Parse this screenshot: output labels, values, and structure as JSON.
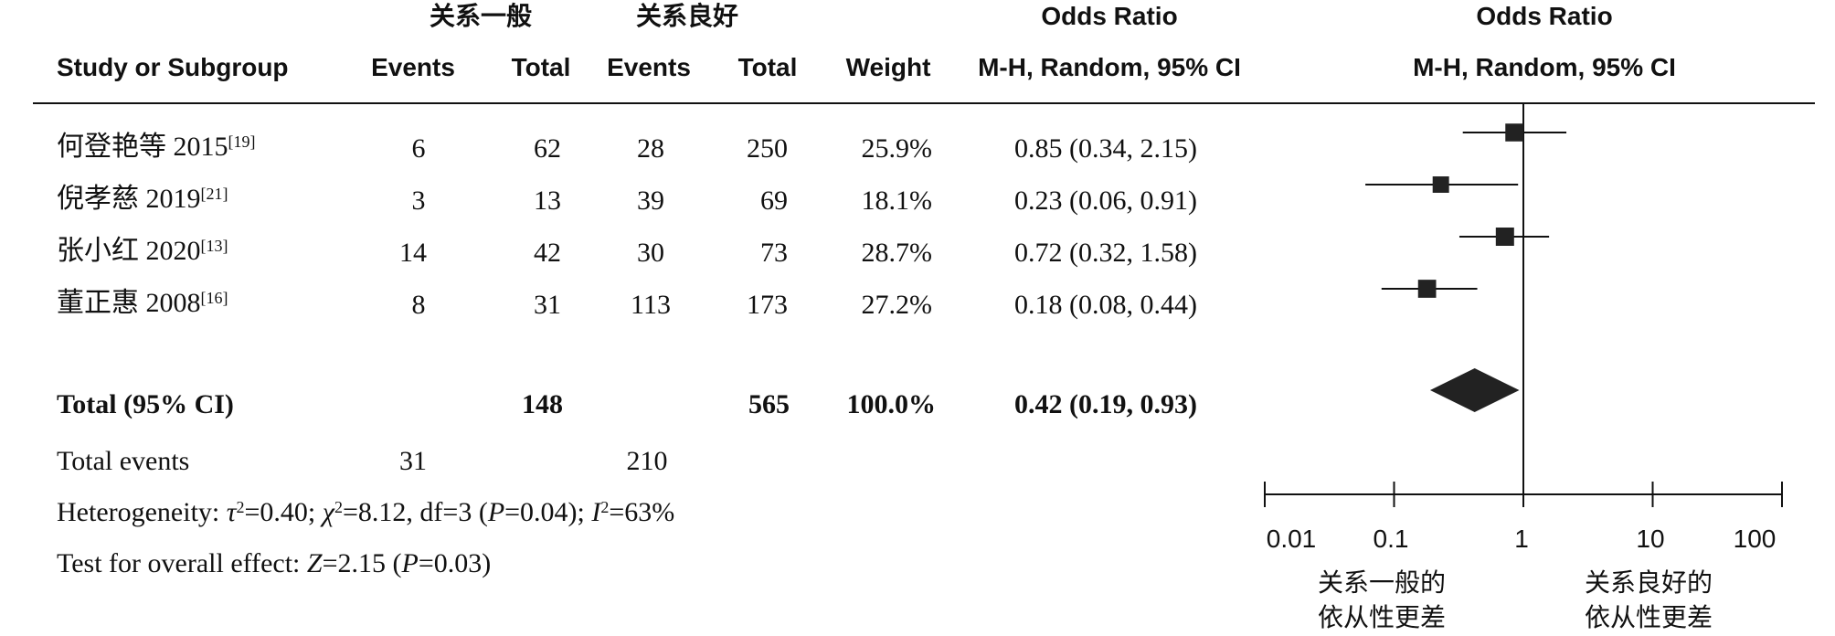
{
  "header": {
    "group1": "关系一般",
    "group2": "关系良好",
    "or_title": "Odds Ratio",
    "col_study": "Study or Subgroup",
    "col_events": "Events",
    "col_total": "Total",
    "col_weight": "Weight",
    "col_ci": "M-H, Random, 95% CI",
    "col_or_ci": "M-H, Random, 95% CI"
  },
  "studies": [
    {
      "name": "何登艳等 2015",
      "ref": "[19]",
      "e1": "6",
      "t1": "62",
      "e2": "28",
      "t2": "250",
      "weight": "25.9%",
      "ci": "0.85 (0.34, 2.15)"
    },
    {
      "name": "倪孝慈 2019",
      "ref": "[21]",
      "e1": "3",
      "t1": "13",
      "e2": "39",
      "t2": "69",
      "weight": "18.1%",
      "ci": "0.23 (0.06, 0.91)"
    },
    {
      "name": "张小红 2020",
      "ref": "[13]",
      "e1": "14",
      "t1": "42",
      "e2": "30",
      "t2": "73",
      "weight": "28.7%",
      "ci": "0.72 (0.32, 1.58)"
    },
    {
      "name": "董正惠 2008",
      "ref": "[16]",
      "e1": "8",
      "t1": "31",
      "e2": "113",
      "t2": "173",
      "weight": "27.2%",
      "ci": "0.18 (0.08, 0.44)"
    }
  ],
  "total": {
    "label": "Total (95% CI)",
    "t1": "148",
    "t2": "565",
    "weight": "100.0%",
    "ci": "0.42 (0.19, 0.93)"
  },
  "total_events": {
    "label": "Total events",
    "e1": "31",
    "e2": "210"
  },
  "heterogeneity": {
    "prefix": "Heterogeneity: ",
    "tau": "τ",
    "tau_val": "=0.40; ",
    "chi": "χ",
    "chi_val": "=8.12, df=3 (",
    "p": "P",
    "p_val": "=0.04); ",
    "i": "I",
    "i_val": "=63%"
  },
  "overall_effect": {
    "prefix": "Test for overall effect: ",
    "z": "Z",
    "z_val": "=2.15 (",
    "p": "P",
    "p_val": "=0.03)"
  },
  "axis": {
    "tick_labels": [
      "0.01",
      "0.1",
      "1",
      "10",
      "100"
    ],
    "favours_left_line1": "关系一般的",
    "favours_left_line2": "依从性更差",
    "favours_right_line1": "关系良好的",
    "favours_right_line2": "依从性更差"
  },
  "chart_data": {
    "type": "scatter",
    "x_scale": "log",
    "xlim": [
      0.01,
      100
    ],
    "ticks": [
      0.01,
      0.1,
      1,
      10,
      100
    ],
    "reference_line": 1,
    "studies": [
      {
        "or": 0.85,
        "lower": 0.34,
        "upper": 2.15,
        "weight": 25.9
      },
      {
        "or": 0.23,
        "lower": 0.06,
        "upper": 0.91,
        "weight": 18.1
      },
      {
        "or": 0.72,
        "lower": 0.32,
        "upper": 1.58,
        "weight": 28.7
      },
      {
        "or": 0.18,
        "lower": 0.08,
        "upper": 0.44,
        "weight": 27.2
      }
    ],
    "pooled": {
      "or": 0.42,
      "lower": 0.19,
      "upper": 0.93
    }
  }
}
